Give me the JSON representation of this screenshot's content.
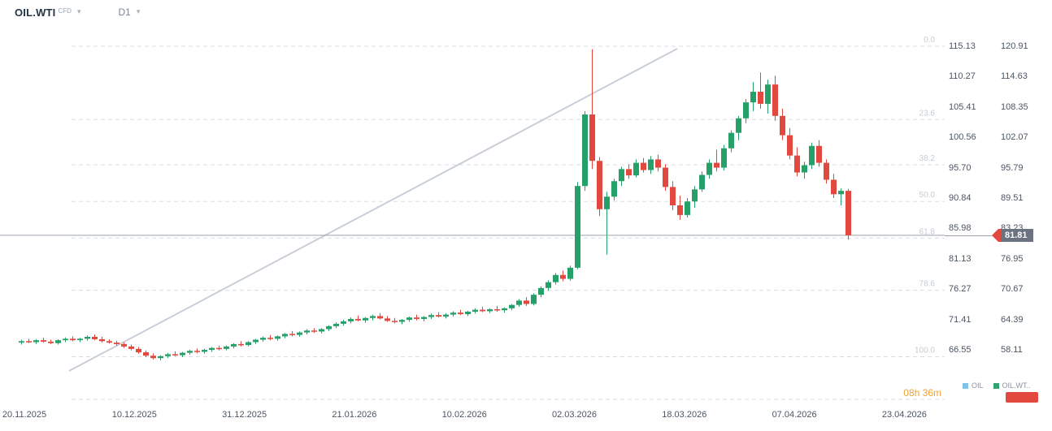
{
  "header": {
    "symbol": "OIL.WTI",
    "symbol_type": "CFD",
    "timeframe": "D1"
  },
  "chart_data": {
    "type": "candlestick",
    "instrument": "OIL.WTI",
    "timeframe": "D1",
    "current_price": "81.81",
    "candle_countdown": "08h 36m",
    "x_axis_dates": [
      "20.11.2025",
      "10.12.2025",
      "31.12.2025",
      "21.01.2026",
      "10.02.2026",
      "02.03.2026",
      "18.03.2026",
      "07.04.2026",
      "23.04.2026"
    ],
    "price_axis_left": [
      "115.13",
      "110.27",
      "105.41",
      "100.56",
      "95.70",
      "90.84",
      "85.98",
      "81.13",
      "76.27",
      "71.41",
      "66.55"
    ],
    "price_axis_right": [
      "120.91",
      "114.63",
      "108.35",
      "102.07",
      "95.79",
      "89.51",
      "83.23",
      "76.95",
      "70.67",
      "64.39",
      "58.11"
    ],
    "fibonacci_levels": [
      {
        "label": "0.0",
        "price": 115.13
      },
      {
        "label": "23.6",
        "price": 103.4
      },
      {
        "label": "38.2",
        "price": 96.15
      },
      {
        "label": "50.0",
        "price": 90.28
      },
      {
        "label": "61.8",
        "price": 84.41
      },
      {
        "label": "78.6",
        "price": 76.06
      },
      {
        "label": "100.0",
        "price": 65.43
      }
    ],
    "candles_ohlc": [
      [
        59.6,
        60.2,
        59.2,
        59.9
      ],
      [
        59.9,
        60.4,
        59.5,
        59.7
      ],
      [
        59.7,
        60.3,
        59.3,
        60.1
      ],
      [
        60.1,
        60.6,
        59.6,
        59.8
      ],
      [
        59.8,
        60.2,
        59.3,
        59.5
      ],
      [
        59.5,
        60.3,
        59.2,
        60.1
      ],
      [
        60.1,
        60.7,
        59.7,
        60.4
      ],
      [
        60.4,
        60.9,
        59.9,
        60.1
      ],
      [
        60.1,
        60.6,
        59.7,
        60.4
      ],
      [
        60.4,
        61.1,
        60.0,
        60.8
      ],
      [
        60.8,
        61.3,
        60.1,
        60.3
      ],
      [
        60.3,
        60.8,
        59.6,
        59.9
      ],
      [
        59.9,
        60.3,
        59.4,
        59.6
      ],
      [
        59.6,
        60.0,
        59.0,
        59.3
      ],
      [
        59.3,
        59.7,
        58.5,
        58.8
      ],
      [
        58.8,
        59.2,
        58.0,
        58.3
      ],
      [
        58.3,
        58.7,
        57.3,
        57.6
      ],
      [
        57.6,
        58.0,
        56.6,
        56.9
      ],
      [
        56.9,
        57.4,
        56.1,
        56.4
      ],
      [
        56.4,
        57.0,
        55.9,
        56.8
      ],
      [
        56.8,
        57.5,
        56.4,
        57.2
      ],
      [
        57.2,
        57.8,
        56.8,
        57.0
      ],
      [
        57.0,
        57.7,
        56.6,
        57.5
      ],
      [
        57.5,
        58.1,
        57.1,
        57.9
      ],
      [
        57.9,
        58.4,
        57.4,
        57.7
      ],
      [
        57.7,
        58.3,
        57.3,
        58.1
      ],
      [
        58.1,
        58.7,
        57.7,
        58.5
      ],
      [
        58.5,
        59.0,
        58.0,
        58.3
      ],
      [
        58.3,
        59.0,
        58.0,
        58.8
      ],
      [
        58.8,
        59.5,
        58.4,
        59.3
      ],
      [
        59.3,
        59.9,
        58.8,
        59.1
      ],
      [
        59.1,
        59.9,
        58.8,
        59.7
      ],
      [
        59.7,
        60.4,
        59.3,
        60.2
      ],
      [
        60.2,
        60.9,
        59.8,
        60.6
      ],
      [
        60.6,
        61.2,
        60.1,
        60.4
      ],
      [
        60.4,
        61.1,
        60.0,
        60.9
      ],
      [
        60.9,
        61.6,
        60.5,
        61.4
      ],
      [
        61.4,
        62.0,
        60.9,
        61.2
      ],
      [
        61.2,
        61.9,
        60.8,
        61.7
      ],
      [
        61.7,
        62.4,
        61.3,
        62.1
      ],
      [
        62.1,
        62.6,
        61.6,
        61.9
      ],
      [
        61.9,
        62.6,
        61.5,
        62.4
      ],
      [
        62.4,
        63.2,
        62.0,
        63.0
      ],
      [
        63.0,
        63.8,
        62.6,
        63.5
      ],
      [
        63.5,
        64.3,
        63.1,
        64.0
      ],
      [
        64.0,
        64.8,
        63.6,
        64.5
      ],
      [
        64.5,
        65.2,
        64.0,
        64.2
      ],
      [
        64.2,
        64.9,
        63.7,
        64.7
      ],
      [
        64.7,
        65.4,
        64.2,
        65.1
      ],
      [
        65.1,
        65.7,
        64.4,
        64.6
      ],
      [
        64.6,
        65.1,
        63.9,
        64.1
      ],
      [
        64.1,
        64.7,
        63.6,
        63.9
      ],
      [
        63.9,
        64.5,
        63.4,
        64.3
      ],
      [
        64.3,
        65.0,
        63.9,
        64.8
      ],
      [
        64.8,
        65.4,
        64.2,
        64.5
      ],
      [
        64.5,
        65.1,
        64.0,
        64.9
      ],
      [
        64.9,
        65.6,
        64.5,
        65.3
      ],
      [
        65.3,
        65.9,
        64.8,
        65.0
      ],
      [
        65.0,
        65.7,
        64.6,
        65.4
      ],
      [
        65.4,
        66.1,
        65.0,
        65.8
      ],
      [
        65.8,
        66.4,
        65.3,
        65.5
      ],
      [
        65.5,
        66.2,
        65.1,
        66.0
      ],
      [
        66.0,
        66.7,
        65.6,
        66.4
      ],
      [
        66.4,
        67.0,
        65.9,
        66.1
      ],
      [
        66.1,
        66.7,
        65.7,
        66.5
      ],
      [
        66.5,
        67.2,
        66.0,
        66.3
      ],
      [
        66.3,
        66.9,
        65.8,
        66.7
      ],
      [
        66.7,
        67.6,
        66.3,
        67.4
      ],
      [
        67.4,
        68.6,
        67.0,
        68.3
      ],
      [
        68.3,
        69.0,
        67.2,
        67.6
      ],
      [
        67.6,
        69.8,
        67.3,
        69.5
      ],
      [
        69.5,
        71.2,
        69.0,
        70.9
      ],
      [
        70.9,
        72.5,
        70.3,
        72.1
      ],
      [
        72.1,
        74.0,
        71.6,
        73.6
      ],
      [
        73.6,
        74.5,
        72.3,
        72.8
      ],
      [
        72.8,
        75.5,
        72.4,
        75.1
      ],
      [
        75.1,
        92.8,
        74.8,
        92.0
      ],
      [
        92.0,
        107.5,
        91.0,
        106.8
      ],
      [
        106.8,
        120.3,
        95.5,
        97.2
      ],
      [
        97.2,
        98.0,
        85.8,
        87.2
      ],
      [
        87.2,
        90.8,
        77.8,
        89.8
      ],
      [
        89.8,
        93.5,
        89.0,
        93.0
      ],
      [
        93.0,
        96.0,
        92.0,
        95.5
      ],
      [
        95.5,
        96.5,
        93.5,
        94.2
      ],
      [
        94.2,
        97.5,
        93.8,
        96.8
      ],
      [
        96.8,
        97.8,
        94.8,
        95.3
      ],
      [
        95.3,
        98.2,
        94.5,
        97.5
      ],
      [
        97.5,
        98.5,
        95.0,
        95.8
      ],
      [
        95.8,
        96.5,
        91.0,
        91.8
      ],
      [
        91.8,
        93.0,
        87.0,
        88.0
      ],
      [
        88.0,
        90.0,
        85.0,
        86.0
      ],
      [
        86.0,
        89.5,
        85.5,
        88.8
      ],
      [
        88.8,
        92.0,
        87.5,
        91.3
      ],
      [
        91.3,
        95.0,
        90.8,
        94.3
      ],
      [
        94.3,
        97.5,
        93.5,
        96.8
      ],
      [
        96.8,
        99.5,
        95.0,
        95.8
      ],
      [
        95.8,
        100.5,
        95.2,
        99.8
      ],
      [
        99.8,
        103.5,
        99.0,
        103.0
      ],
      [
        103.0,
        106.5,
        101.5,
        106.0
      ],
      [
        106.0,
        110.0,
        105.0,
        109.3
      ],
      [
        109.3,
        113.5,
        107.5,
        111.5
      ],
      [
        111.5,
        115.5,
        108.0,
        109.0
      ],
      [
        109.0,
        114.0,
        107.0,
        113.0
      ],
      [
        113.0,
        114.8,
        105.5,
        106.5
      ],
      [
        106.5,
        108.0,
        101.5,
        102.5
      ],
      [
        102.5,
        104.0,
        97.5,
        98.3
      ],
      [
        98.3,
        100.0,
        94.0,
        94.8
      ],
      [
        94.8,
        97.0,
        93.5,
        96.3
      ],
      [
        96.3,
        101.0,
        95.5,
        100.3
      ],
      [
        100.3,
        101.5,
        96.0,
        96.8
      ],
      [
        96.8,
        97.5,
        92.5,
        93.3
      ],
      [
        93.3,
        94.5,
        89.5,
        90.3
      ],
      [
        90.3,
        91.5,
        88.0,
        91.0
      ],
      [
        91.0,
        91.4,
        80.9,
        81.81
      ]
    ]
  },
  "legend": {
    "series": [
      {
        "name": "OIL",
        "color": "#7fc4e8"
      },
      {
        "name": "OIL.WT..",
        "color": "#2fa46c"
      }
    ]
  },
  "colors": {
    "up": "#26a069",
    "down": "#e2483d",
    "fib_line": "#dadde3",
    "fib_label": "#c6ccd4",
    "trend_line": "#c9cfd8",
    "price_line": "#9aa1ac",
    "badge_bg": "#6b7280",
    "countdown": "#f0a22e"
  }
}
